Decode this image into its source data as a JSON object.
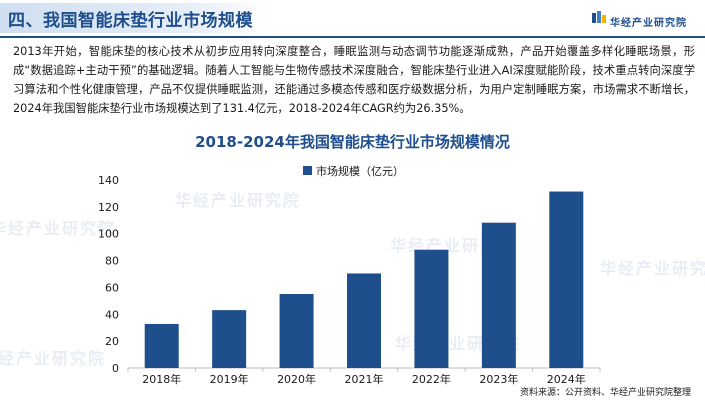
{
  "header": {
    "title": "四、我国智能床垫行业市场规模",
    "brand": "华经产业研究院"
  },
  "intro": "2013年开始，智能床垫的核心技术从初步应用转向深度整合，睡眠监测与动态调节功能逐渐成熟，产品开始覆盖多样化睡眠场景，形成“数据追踪+主动干预”的基础逻辑。随着人工智能与生物传感技术深度融合，智能床垫行业进入AI深度赋能阶段，技术重点转向深度学习算法和个性化健康管理，产品不仅提供睡眠监测，还能通过多模态传感和医疗级数据分析，为用户定制睡眠方案，市场需求不断增长，2024年我国智能床垫行业市场规模达到了131.4亿元，2018-2024年CAGR约为26.35%。",
  "watermark": "华经产业研究院",
  "source": "资料来源：公开资料、华经产业研究院整理",
  "colors": {
    "accent": "#1f4e8c",
    "bar": "#1f4e8c"
  },
  "chart_data": {
    "type": "bar",
    "title": "2018-2024年我国智能床垫行业市场规模情况",
    "categories": [
      "2018年",
      "2019年",
      "2020年",
      "2021年",
      "2022年",
      "2023年",
      "2024年"
    ],
    "series": [
      {
        "name": "市场规模（亿元）",
        "values": [
          32.8,
          43.1,
          55.1,
          70.4,
          88.1,
          108.2,
          131.4
        ]
      }
    ],
    "ylim": [
      0,
      140
    ],
    "yticks": [
      0,
      20,
      40,
      60,
      80,
      100,
      120,
      140
    ],
    "grid": false,
    "legend": "top-left"
  }
}
